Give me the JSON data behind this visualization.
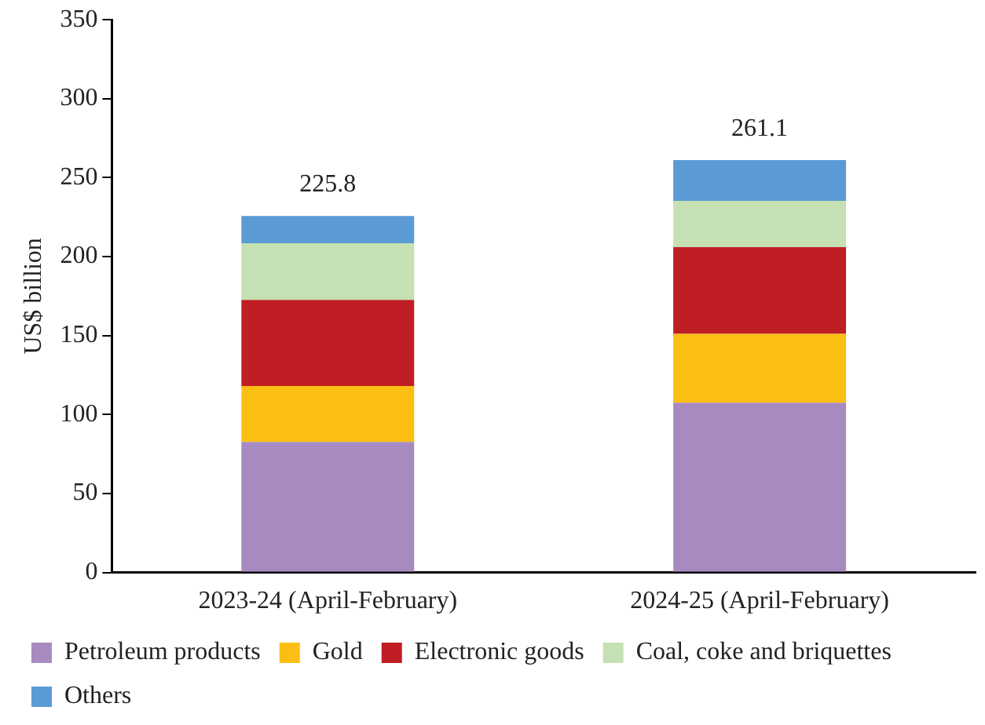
{
  "chart_data": {
    "type": "bar",
    "stacked": true,
    "ylabel": "US$ billion",
    "categories": [
      "2023-24 (April-February)",
      "2024-25 (April-February)"
    ],
    "series": [
      {
        "name": "Petroleum products",
        "color": "#a78bc0",
        "values": [
          82.7,
          107.5
        ]
      },
      {
        "name": "Gold",
        "color": "#fbbf13",
        "values": [
          35.4,
          43.6
        ]
      },
      {
        "name": "Electronic goods",
        "color": "#be1e24",
        "values": [
          54.5,
          54.9
        ]
      },
      {
        "name": "Coal, coke and briquettes",
        "color": "#c5e0b3",
        "values": [
          35.9,
          29.3
        ]
      },
      {
        "name": "Others",
        "color": "#5b9bd5",
        "values": [
          17.3,
          25.8
        ]
      }
    ],
    "totals": [
      "225.8",
      "261.1"
    ],
    "ylim": [
      0,
      350
    ],
    "yticks": [
      0,
      50,
      100,
      150,
      200,
      250,
      300,
      350
    ],
    "grid": false,
    "legend": "bottom"
  }
}
